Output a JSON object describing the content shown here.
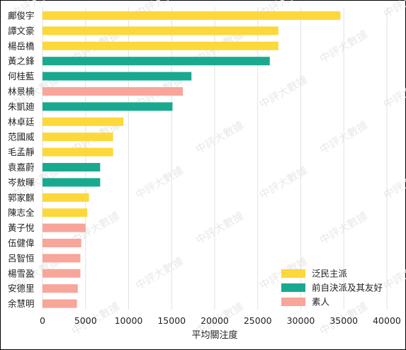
{
  "chart_data": {
    "type": "bar",
    "orientation": "horizontal",
    "title": "",
    "xlabel": "平均關注度",
    "ylabel": "",
    "xlim": [
      0,
      40000
    ],
    "xticks": [
      0,
      5000,
      10000,
      15000,
      20000,
      25000,
      30000,
      35000,
      40000
    ],
    "grid": "vertical",
    "legend_position": "bottom-right",
    "watermark": "中評大數據",
    "categories": [
      "鄺俊宇",
      "譚文豪",
      "楊岳橋",
      "黃之鋒",
      "何桂藍",
      "林景楠",
      "朱凱廸",
      "林卓廷",
      "范國威",
      "毛孟靜",
      "袁嘉蔚",
      "岑敖暉",
      "郭家麒",
      "陳志全",
      "黃子悅",
      "伍健偉",
      "呂智恒",
      "楊雪盈",
      "安德里",
      "余慧明"
    ],
    "values": [
      34600,
      27400,
      27400,
      26400,
      17300,
      16300,
      15100,
      9400,
      8200,
      8200,
      6700,
      6700,
      5400,
      5200,
      5000,
      4500,
      4400,
      4400,
      4100,
      4000
    ],
    "groups": [
      "泛民主派",
      "泛民主派",
      "泛民主派",
      "前自決派及其友好",
      "前自決派及其友好",
      "素人",
      "前自決派及其友好",
      "泛民主派",
      "泛民主派",
      "泛民主派",
      "前自決派及其友好",
      "前自決派及其友好",
      "泛民主派",
      "泛民主派",
      "素人",
      "素人",
      "素人",
      "素人",
      "素人",
      "素人"
    ],
    "legend": [
      {
        "name": "泛民主派",
        "color": "#fcd83a"
      },
      {
        "name": "前自決派及其友好",
        "color": "#19a98f"
      },
      {
        "name": "素人",
        "color": "#f8a59a"
      }
    ]
  }
}
